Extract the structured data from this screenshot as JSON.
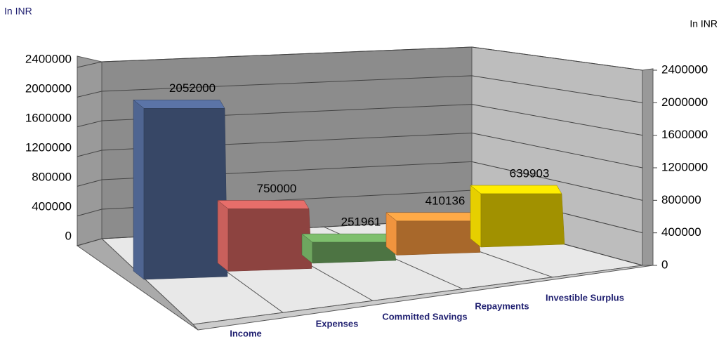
{
  "chart_data": {
    "type": "bar3d",
    "ylabel": "In INR",
    "y2label": "In INR",
    "categories": [
      "Income",
      "Expenses",
      "Committed Savings",
      "Repayments",
      "Investible Surplus"
    ],
    "values": [
      2052000,
      750000,
      251961,
      410136,
      639903
    ],
    "colors": [
      "#4f6591",
      "#c9605c",
      "#6ea65f",
      "#f0943e",
      "#e6cf00"
    ],
    "ylim": [
      0,
      2400000
    ],
    "yticks": [
      0,
      400000,
      800000,
      1200000,
      1600000,
      2000000,
      2400000
    ],
    "y2lim": [
      0,
      2400000
    ],
    "y2ticks": [
      0,
      400000,
      800000,
      1200000,
      1600000,
      2000000,
      2400000
    ],
    "grid": true
  }
}
